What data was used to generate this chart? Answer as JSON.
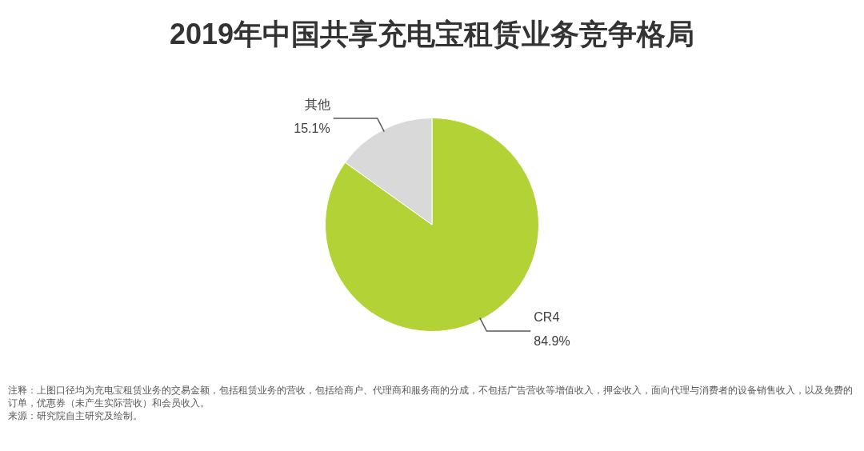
{
  "chart_data": {
    "type": "pie",
    "title": "2019年中国共享充电宝租赁业务竞争格局",
    "categories": [
      "CR4",
      "其他"
    ],
    "values": [
      84.9,
      15.1
    ],
    "value_labels": [
      "84.9%",
      "15.1%"
    ],
    "colors": [
      "#b2d235",
      "#d9d9d9"
    ],
    "legend": false,
    "annotations": [
      "注释：上图口径均为充电宝租赁业务的交易金额，包括租赁业务的营收，包括给商户、代理商和服务商的分成，不包括广告营收等增值收入，押金收入，面向代理与消费者的设备销售收入，以及免费的订单，优惠券（未产生实际营收）和会员收入。",
      "来源：研究院自主研究及绘制。"
    ]
  }
}
